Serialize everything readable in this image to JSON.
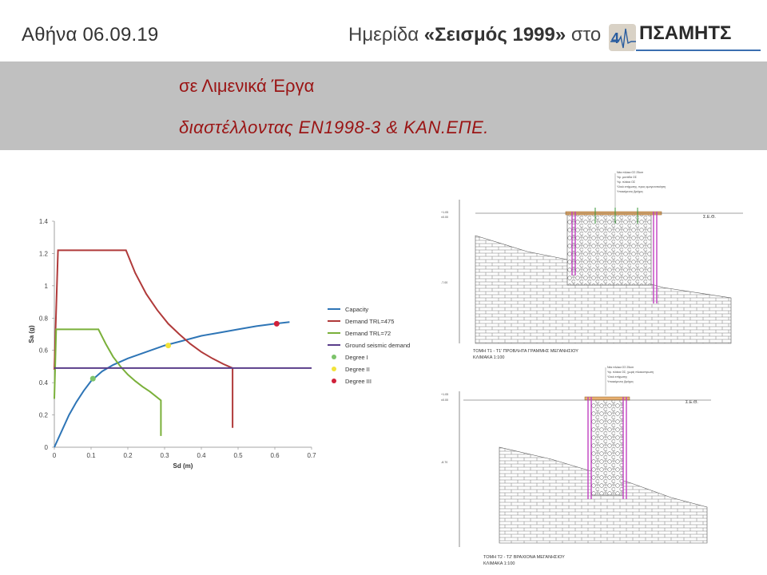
{
  "header": {
    "date": "Αθήνα 06.09.19",
    "event_prefix": "Ημερίδα ",
    "event_title": "«Σεισμός 1999»",
    "event_suffix": " στο",
    "logo_text": "ΠΣΑΜΗΤΣ"
  },
  "band": {
    "title": "σε Λιμενικά Έργα",
    "subtitle": "διαστέλλοντας ΕΝ1998-3 & ΚΑΝ.ΕΠΕ."
  },
  "chart_data": {
    "type": "line",
    "xlabel": "Sd (m)",
    "ylabel": "Sa (g)",
    "xlim": [
      0,
      0.7
    ],
    "ylim": [
      0,
      1.4
    ],
    "xticks": [
      0,
      0.1,
      0.2,
      0.3,
      0.4,
      0.5,
      0.6,
      0.7
    ],
    "yticks": [
      0,
      0.2,
      0.4,
      0.6,
      0.8,
      1,
      1.2,
      1.4
    ],
    "grid": false,
    "legend_position": "right",
    "series": [
      {
        "name": "Capacity",
        "color": "#2e75b6",
        "x": [
          0,
          0.02,
          0.04,
          0.06,
          0.08,
          0.1,
          0.13,
          0.16,
          0.2,
          0.25,
          0.3,
          0.35,
          0.4,
          0.45,
          0.5,
          0.55,
          0.6,
          0.64
        ],
        "y": [
          0,
          0.1,
          0.2,
          0.28,
          0.35,
          0.41,
          0.47,
          0.51,
          0.55,
          0.59,
          0.63,
          0.66,
          0.69,
          0.71,
          0.73,
          0.75,
          0.765,
          0.775
        ]
      },
      {
        "name": "Demand TRL=475",
        "color": "#b03a3a",
        "x": [
          0,
          0.01,
          0.195,
          0.22,
          0.25,
          0.28,
          0.31,
          0.34,
          0.37,
          0.4,
          0.43,
          0.46,
          0.485,
          0.485
        ],
        "y": [
          0.48,
          1.22,
          1.22,
          1.08,
          0.95,
          0.85,
          0.765,
          0.7,
          0.64,
          0.59,
          0.55,
          0.515,
          0.49,
          0.12
        ]
      },
      {
        "name": "Demand TRL=72",
        "color": "#7ab03a",
        "x": [
          0,
          0.005,
          0.12,
          0.14,
          0.16,
          0.18,
          0.2,
          0.22,
          0.24,
          0.26,
          0.29,
          0.29
        ],
        "y": [
          0.3,
          0.73,
          0.73,
          0.64,
          0.56,
          0.5,
          0.45,
          0.41,
          0.375,
          0.345,
          0.29,
          0.07
        ]
      },
      {
        "name": "Ground seismic demand",
        "color": "#5a3d8a",
        "x": [
          0,
          0.7
        ],
        "y": [
          0.49,
          0.49
        ]
      }
    ],
    "points": [
      {
        "name": "Degree I",
        "color": "#7cc36a",
        "x": 0.105,
        "y": 0.425
      },
      {
        "name": "Degree II",
        "color": "#f2e33a",
        "x": 0.31,
        "y": 0.63
      },
      {
        "name": "Degree III",
        "color": "#d0213a",
        "x": 0.605,
        "y": 0.765
      }
    ]
  },
  "drawings": {
    "top_caption": "ΤΟΜΗ Τ1 - Τ1' ΠΡΟΒΛΗΤΑ ΓΡΑΜΜΗΣ ΜΕΓΑΝΗΣΙΟΥ",
    "top_scale": "ΚΛΙΜΑΚΑ 1:100",
    "bottom_caption": "ΤΟΜΗ Τ2 - Τ2' ΒΡΑΧΙΟΝΑ ΜΕΓΑΝΗΣΙΟΥ",
    "bottom_scale": "ΚΛΙΜΑΚΑ 1:100",
    "top_notes": [
      "Νέα πλάκα ΟΣ 25cm",
      "Υψ. μονάδα ΟΣ",
      "Υψ. πλάκα ΟΣ",
      "Υλικό επίχωσης, προς ομογενοποίηση",
      "Υποκείμενος βράχος"
    ],
    "bottom_notes": [
      "Νέα πλάκα ΟΣ 25cm",
      "Υψ. πλάκα ΟΣ, χωρίς πλακοστρωση",
      "Υλικό επίχωσης",
      "Υποκείμενος βράχος"
    ],
    "level_top": "+1.05",
    "level_zero": "±0.00",
    "level_deep_top": "-7.00",
    "level_deep_bottom": "-8.70",
    "seo_label": "Σ.Ε.Θ."
  }
}
